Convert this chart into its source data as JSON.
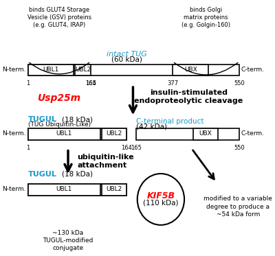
{
  "bg_color": "#ffffff",
  "black": "#000000",
  "red": "#ff0000",
  "blue": "#0000ff",
  "cyan_blue": "#007bff",
  "top_annot_left": "binds GLUT4 Storage\nVesicle (GSV) proteins\n(e.g. GLUT4, IRAP)",
  "top_annot_right": "binds Golgi\nmatrix proteins\n(e.g. Golgin-160)",
  "intact_tug_label": "intact TUG",
  "intact_tug_kda": "(60 kDa)",
  "cleavage_text_red": "Usp25m",
  "cleavage_text_black": "insulin-stimulated\nendoproteolytic cleavage",
  "tugul_label": "TUGUL",
  "tugul_kda_18": "(18 kDa)",
  "tugul_subtext": "(TUG Ubiquitin-Like)",
  "cterminal_label": "C-terminal product",
  "cterminal_kda": "(42 kDa)",
  "ubiquitin_text": "ubiquitin-like\nattachment",
  "tugul_label2": "TUGUL",
  "tugul_kda2": "(18 kDa)",
  "kif5b_label": "KIF5B",
  "kif5b_kda": "(110 kDa)",
  "bottom_left_text": "~130 kDa\nTUGUL-modified\nconjugate",
  "bottom_right_text": "modified to a variable\ndegree to produce a\n~54 kDa form",
  "nterm": "N-term.",
  "cterm": "C-term."
}
